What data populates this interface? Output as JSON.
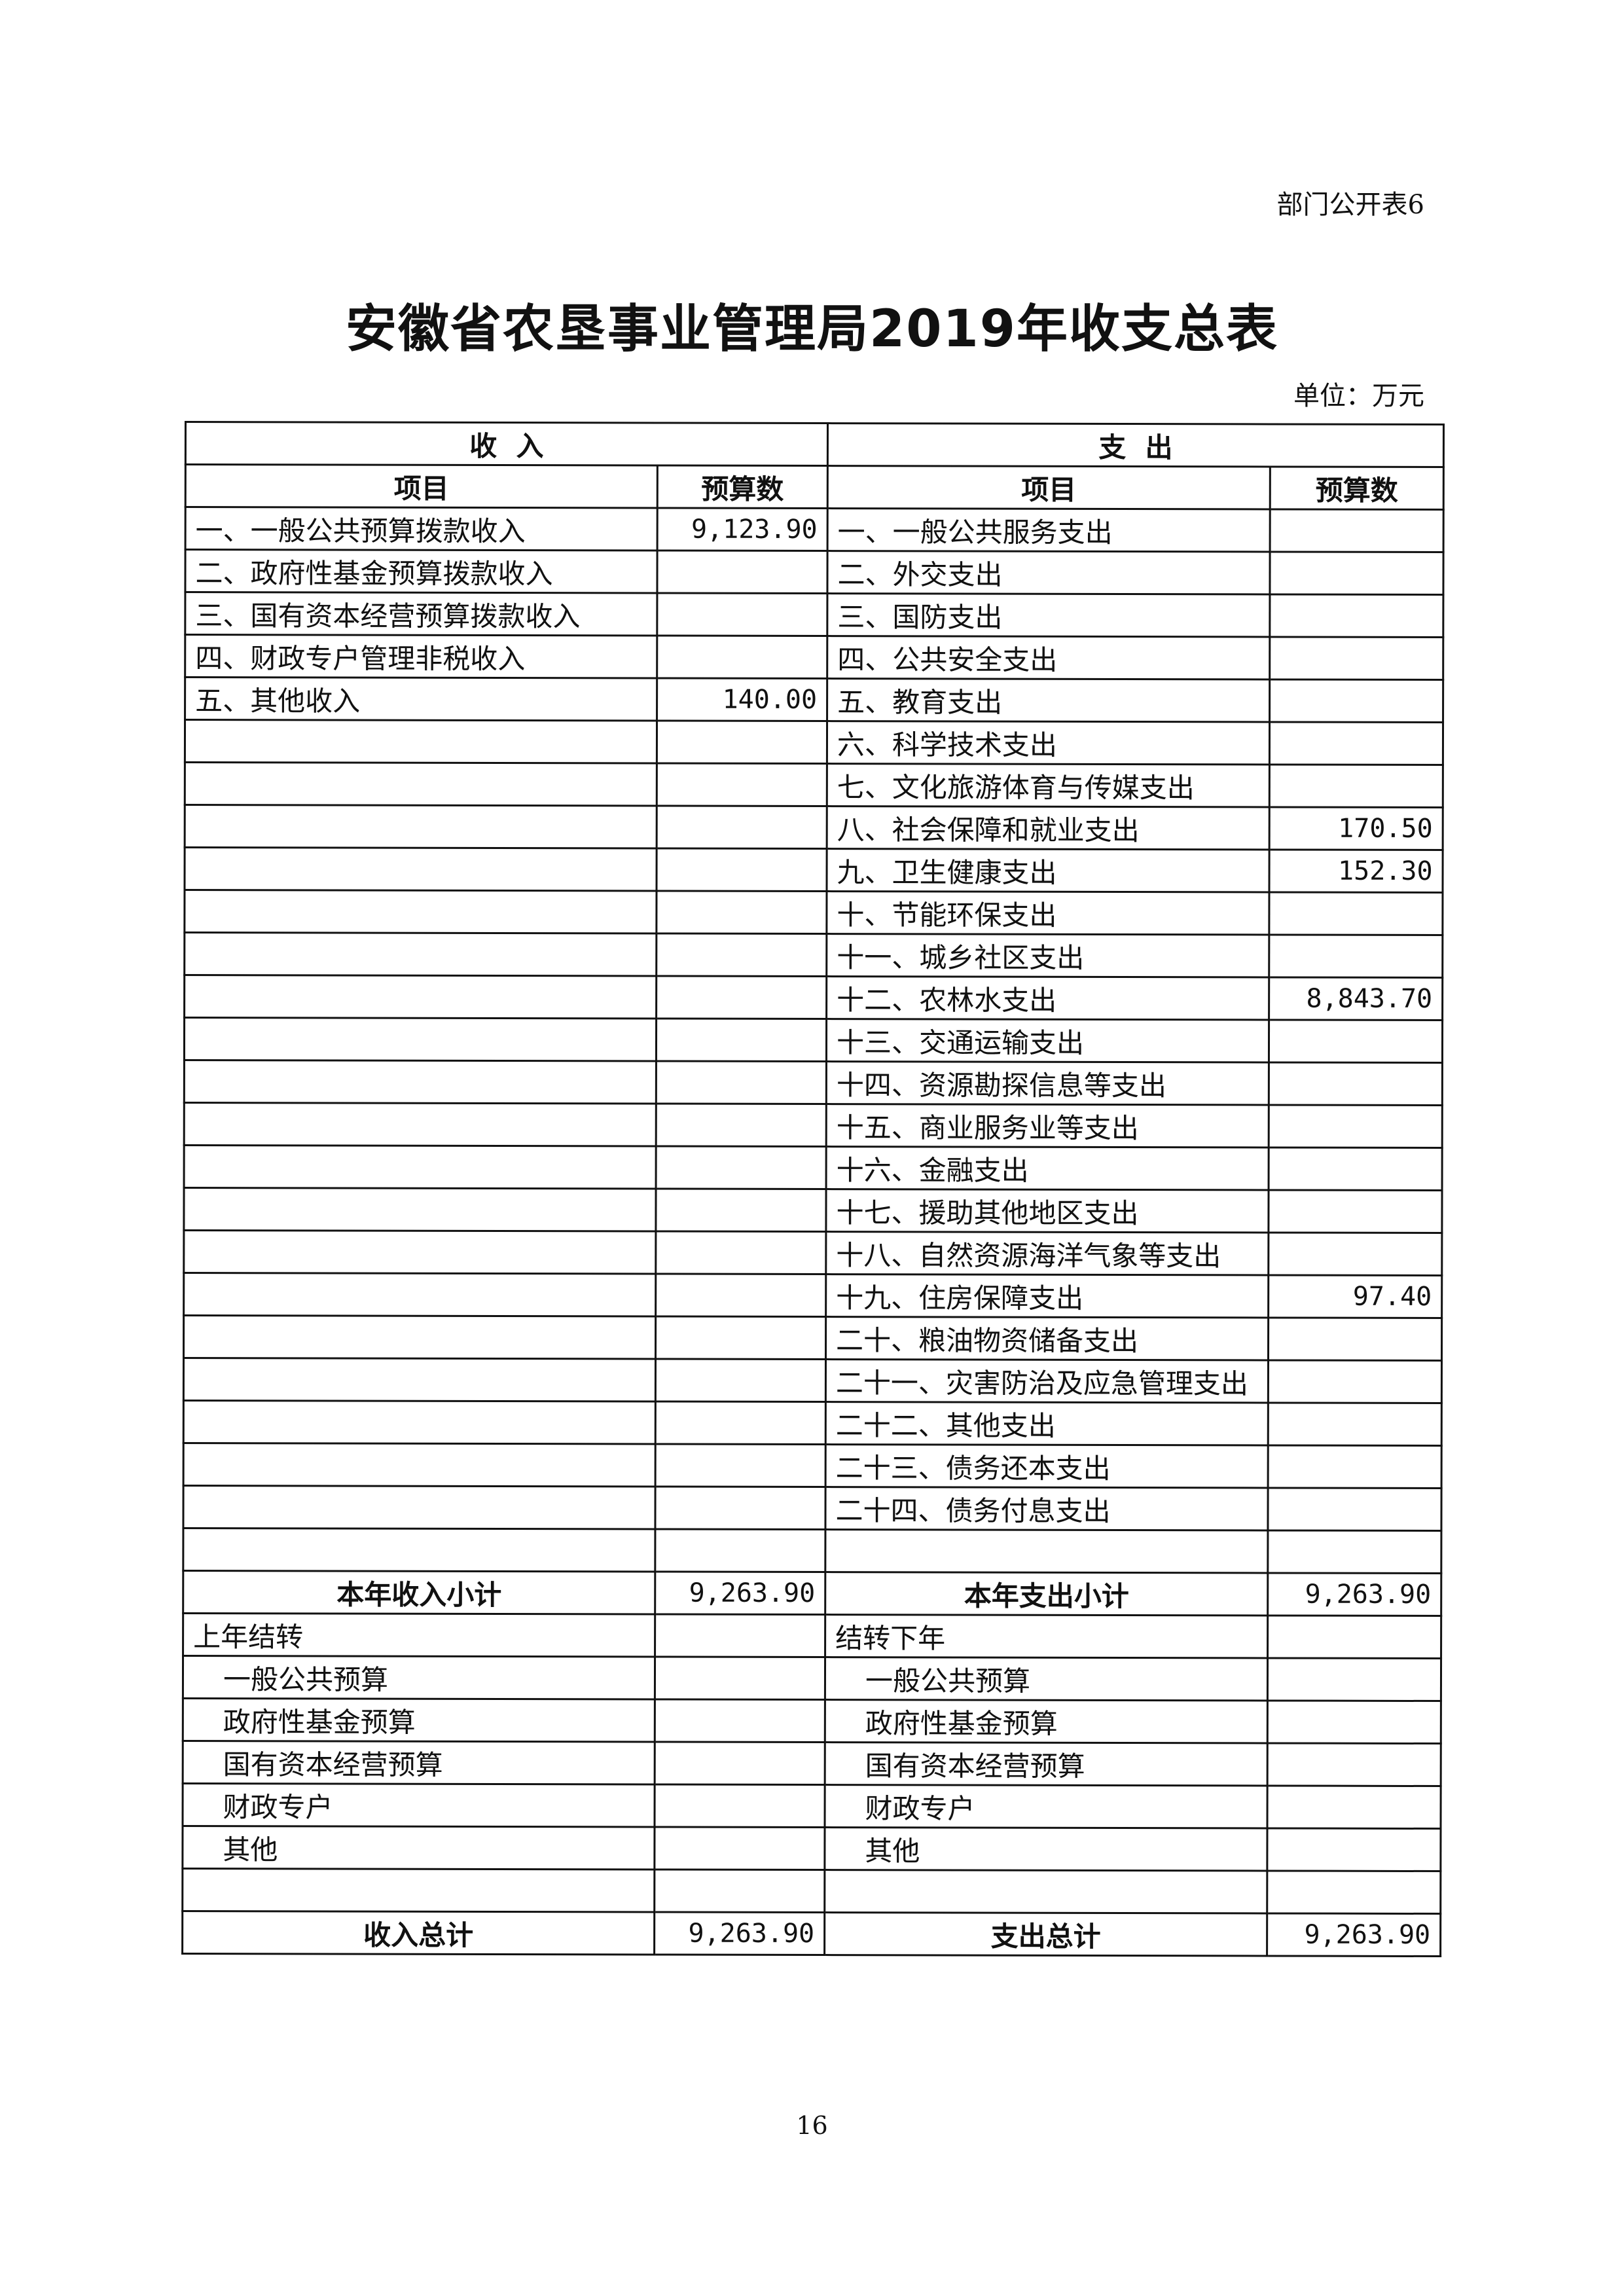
{
  "header": {
    "form_tag": "部门公开表6",
    "title": "安徽省农垦事业管理局2019年收支总表",
    "unit": "单位：万元"
  },
  "table": {
    "income_header": "收  入",
    "expense_header": "支  出",
    "col_item": "项目",
    "col_budget": "预算数",
    "rows": [
      [
        "一、一般公共预算拨款收入",
        "9,123.90",
        "一、一般公共服务支出",
        ""
      ],
      [
        "二、政府性基金预算拨款收入",
        "",
        "二、外交支出",
        ""
      ],
      [
        "三、国有资本经营预算拨款收入",
        "",
        "三、国防支出",
        ""
      ],
      [
        "四、财政专户管理非税收入",
        "",
        "四、公共安全支出",
        ""
      ],
      [
        "五、其他收入",
        "140.00",
        "五、教育支出",
        ""
      ],
      [
        "",
        "",
        "六、科学技术支出",
        ""
      ],
      [
        "",
        "",
        "七、文化旅游体育与传媒支出",
        ""
      ],
      [
        "",
        "",
        "八、社会保障和就业支出",
        "170.50"
      ],
      [
        "",
        "",
        "九、卫生健康支出",
        "152.30"
      ],
      [
        "",
        "",
        "十、节能环保支出",
        ""
      ],
      [
        "",
        "",
        "十一、城乡社区支出",
        ""
      ],
      [
        "",
        "",
        "十二、农林水支出",
        "8,843.70"
      ],
      [
        "",
        "",
        "十三、交通运输支出",
        ""
      ],
      [
        "",
        "",
        "十四、资源勘探信息等支出",
        ""
      ],
      [
        "",
        "",
        "十五、商业服务业等支出",
        ""
      ],
      [
        "",
        "",
        "十六、金融支出",
        ""
      ],
      [
        "",
        "",
        "十七、援助其他地区支出",
        ""
      ],
      [
        "",
        "",
        "十八、自然资源海洋气象等支出",
        ""
      ],
      [
        "",
        "",
        "十九、住房保障支出",
        "97.40"
      ],
      [
        "",
        "",
        "二十、粮油物资储备支出",
        ""
      ],
      [
        "",
        "",
        "二十一、灾害防治及应急管理支出",
        ""
      ],
      [
        "",
        "",
        "二十二、其他支出",
        ""
      ],
      [
        "",
        "",
        "二十三、债务还本支出",
        ""
      ],
      [
        "",
        "",
        "二十四、债务付息支出",
        ""
      ],
      [
        "",
        "",
        "",
        ""
      ]
    ],
    "subtotal": [
      "本年收入小计",
      "9,263.90",
      "本年支出小计",
      "9,263.90"
    ],
    "carry_rows": [
      [
        "上年结转",
        "",
        "结转下年",
        ""
      ],
      [
        "一般公共预算",
        "",
        "一般公共预算",
        ""
      ],
      [
        "政府性基金预算",
        "",
        "政府性基金预算",
        ""
      ],
      [
        "国有资本经营预算",
        "",
        "国有资本经营预算",
        ""
      ],
      [
        "财政专户",
        "",
        "财政专户",
        ""
      ],
      [
        "其他",
        "",
        "其他",
        ""
      ],
      [
        "",
        "",
        "",
        ""
      ]
    ],
    "total": [
      "收入总计",
      "9,263.90",
      "支出总计",
      "9,263.90"
    ]
  },
  "footer": {
    "page_number": "16"
  }
}
